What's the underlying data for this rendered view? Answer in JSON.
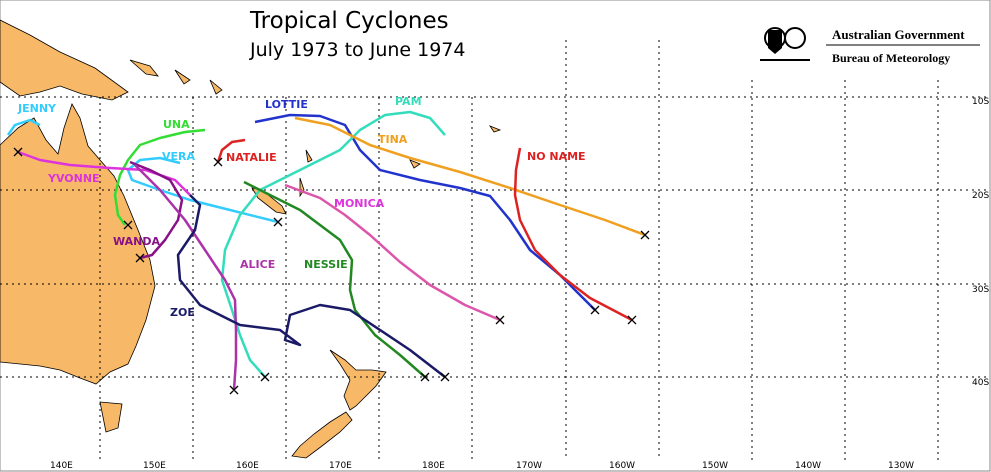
{
  "title": "Tropical Cyclones",
  "subtitle": "July 1973 to June 1974",
  "agency": {
    "government": "Australian Government",
    "bureau": "Bureau of Meteorology"
  },
  "cyclones": [
    "JENNY",
    "UNA",
    "VERA",
    "NATALIE",
    "LOTTIE",
    "PAM",
    "TINA",
    "NO NAME",
    "YVONNE",
    "MONICA",
    "WANDA",
    "ALICE",
    "NESSIE",
    "ZOE"
  ],
  "latitude_labels": [
    "10S",
    "20S",
    "30S",
    "40S"
  ],
  "longitude_labels": [
    "140E",
    "150E",
    "160E",
    "170E",
    "180E",
    "170W",
    "160W",
    "150W",
    "140W",
    "130W"
  ]
}
